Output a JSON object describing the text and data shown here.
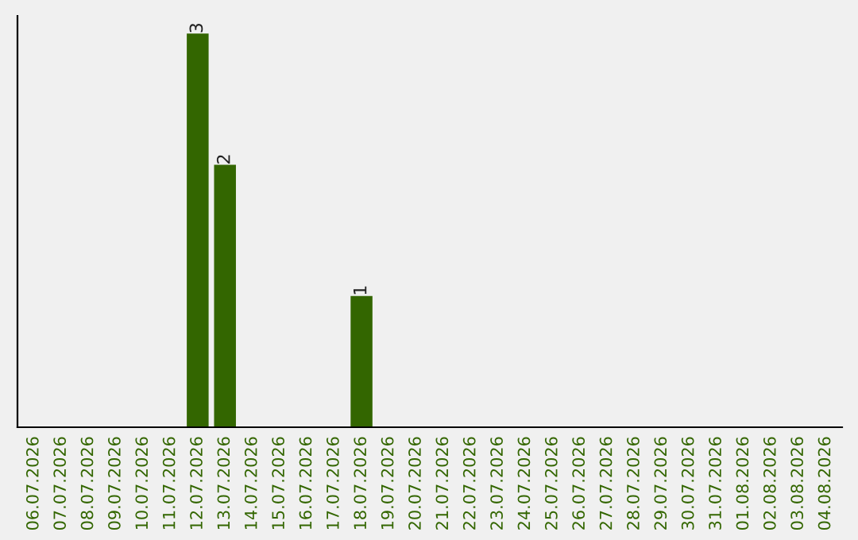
{
  "chart_data": {
    "type": "bar",
    "categories": [
      "06.07.2026",
      "07.07.2026",
      "08.07.2026",
      "09.07.2026",
      "10.07.2026",
      "11.07.2026",
      "12.07.2026",
      "13.07.2026",
      "14.07.2026",
      "15.07.2026",
      "16.07.2026",
      "17.07.2026",
      "18.07.2026",
      "19.07.2026",
      "20.07.2026",
      "21.07.2026",
      "22.07.2026",
      "23.07.2026",
      "24.07.2026",
      "25.07.2026",
      "26.07.2026",
      "27.07.2026",
      "28.07.2026",
      "29.07.2026",
      "30.07.2026",
      "31.07.2026",
      "01.08.2026",
      "02.08.2026",
      "03.08.2026",
      "04.08.2026"
    ],
    "values": [
      0,
      0,
      0,
      0,
      0,
      0,
      3,
      2,
      0,
      0,
      0,
      0,
      1,
      0,
      0,
      0,
      0,
      0,
      0,
      0,
      0,
      0,
      0,
      0,
      0,
      0,
      0,
      0,
      0,
      0
    ],
    "color": "#336600",
    "value_labels": [
      null,
      null,
      null,
      null,
      null,
      null,
      "3",
      "2",
      null,
      null,
      null,
      null,
      "1",
      null,
      null,
      null,
      null,
      null,
      null,
      null,
      null,
      null,
      null,
      null,
      null,
      null,
      null,
      null,
      null,
      null
    ],
    "grid": false,
    "legend": false,
    "tick_labels": "x"
  }
}
